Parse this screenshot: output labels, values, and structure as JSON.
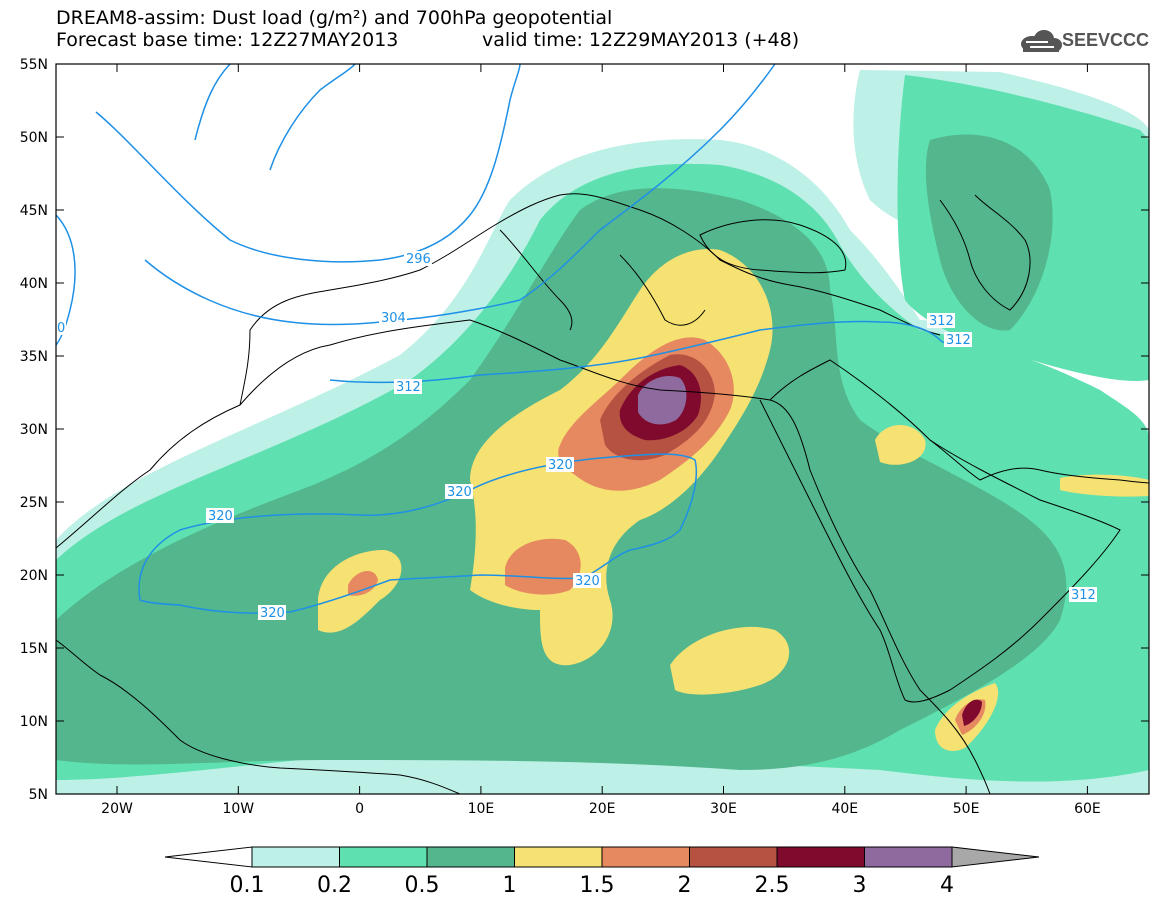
{
  "header": {
    "title": "DREAM8-assim: Dust load (g/m²) and 700hPa geopotential",
    "base_time": "Forecast base time: 12Z27MAY2013",
    "valid_time": "valid time: 12Z29MAY2013 (+48)",
    "logo_text": "SEEVCCC"
  },
  "map": {
    "lat_labels": [
      "55N",
      "50N",
      "45N",
      "40N",
      "35N",
      "30N",
      "25N",
      "20N",
      "15N",
      "10N",
      "5N"
    ],
    "lon_labels": [
      "20W",
      "10W",
      "0",
      "10E",
      "20E",
      "30E",
      "40E",
      "50E",
      "60E"
    ],
    "contours": [
      {
        "label": "296"
      },
      {
        "label": "304"
      },
      {
        "label": "312"
      },
      {
        "label": "320"
      },
      {
        "label": "320"
      },
      {
        "label": "320"
      },
      {
        "label": "320"
      },
      {
        "label": "320"
      },
      {
        "label": "312"
      },
      {
        "label": "312"
      },
      {
        "label": "312"
      },
      {
        "label": "0"
      }
    ]
  },
  "colorbar": {
    "levels": [
      "0.1",
      "0.2",
      "0.5",
      "1",
      "1.5",
      "2",
      "2.5",
      "3",
      "4"
    ],
    "colors": [
      "#bdf0e6",
      "#5ee0b0",
      "#54b68c",
      "#f5e272",
      "#e68960",
      "#b55242",
      "#800a2e",
      "#8e6a9e",
      "#a8a8a8"
    ],
    "under_color": "#ffffff",
    "over_color": "#a8a8a8"
  }
}
